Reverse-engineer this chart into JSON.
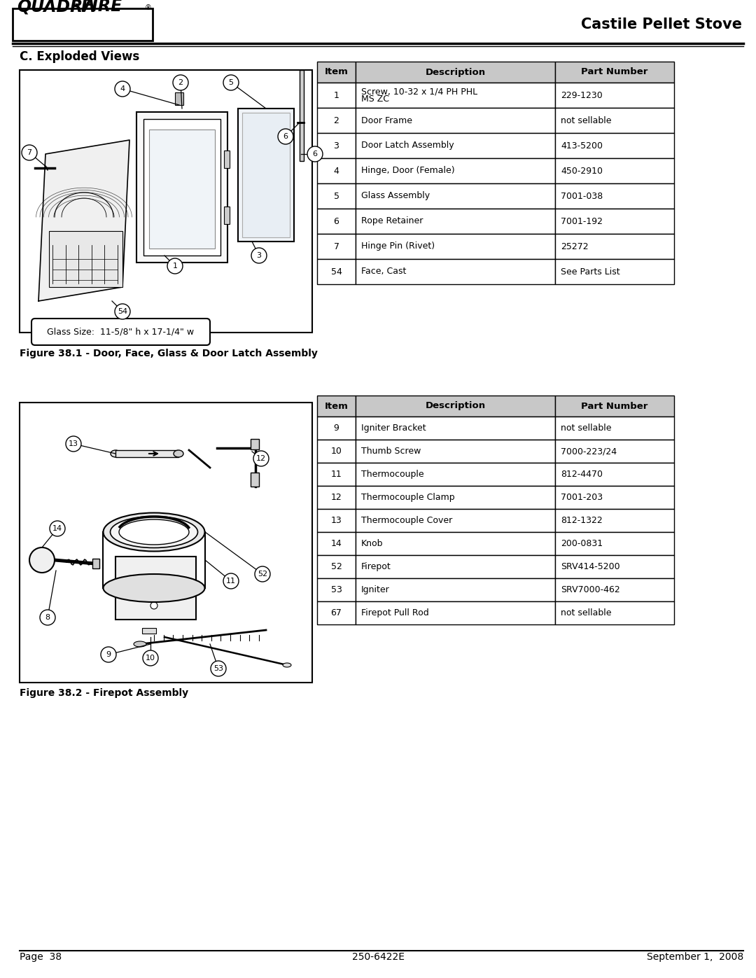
{
  "title_right": "Castile Pellet Stove",
  "section_title": "C. Exploded Views",
  "figure1_caption": "Figure 38.1 - Door, Face, Glass & Door Latch Assembly",
  "figure2_caption": "Figure 38.2 - Firepot Assembly",
  "glass_size_note": "Glass Size:  11-5/8\" h x 17-1/4\" w",
  "footer_left": "Page  38",
  "footer_center": "250-6422E",
  "footer_right": "September 1,  2008",
  "table1_headers": [
    "Item",
    "Description",
    "Part Number"
  ],
  "table1_rows": [
    [
      "1",
      "Screw, 10-32 x 1/4 PH PHL\nMS ZC",
      "229-1230"
    ],
    [
      "2",
      "Door Frame",
      "not sellable"
    ],
    [
      "3",
      "Door Latch Assembly",
      "413-5200"
    ],
    [
      "4",
      "Hinge, Door (Female)",
      "450-2910"
    ],
    [
      "5",
      "Glass Assembly",
      "7001-038"
    ],
    [
      "6",
      "Rope Retainer",
      "7001-192"
    ],
    [
      "7",
      "Hinge Pin (Rivet)",
      "25272"
    ],
    [
      "54",
      "Face, Cast",
      "See Parts List"
    ]
  ],
  "table2_headers": [
    "Item",
    "Description",
    "Part Number"
  ],
  "table2_rows": [
    [
      "9",
      "Igniter Bracket",
      "not sellable"
    ],
    [
      "10",
      "Thumb Screw",
      "7000-223/24"
    ],
    [
      "11",
      "Thermocouple",
      "812-4470"
    ],
    [
      "12",
      "Thermocouple Clamp",
      "7001-203"
    ],
    [
      "13",
      "Thermocouple Cover",
      "812-1322"
    ],
    [
      "14",
      "Knob",
      "200-0831"
    ],
    [
      "52",
      "Firepot",
      "SRV414-5200"
    ],
    [
      "53",
      "Igniter",
      "SRV7000-462"
    ],
    [
      "67",
      "Firepot Pull Rod",
      "not sellable"
    ]
  ],
  "bg_color": "#ffffff"
}
